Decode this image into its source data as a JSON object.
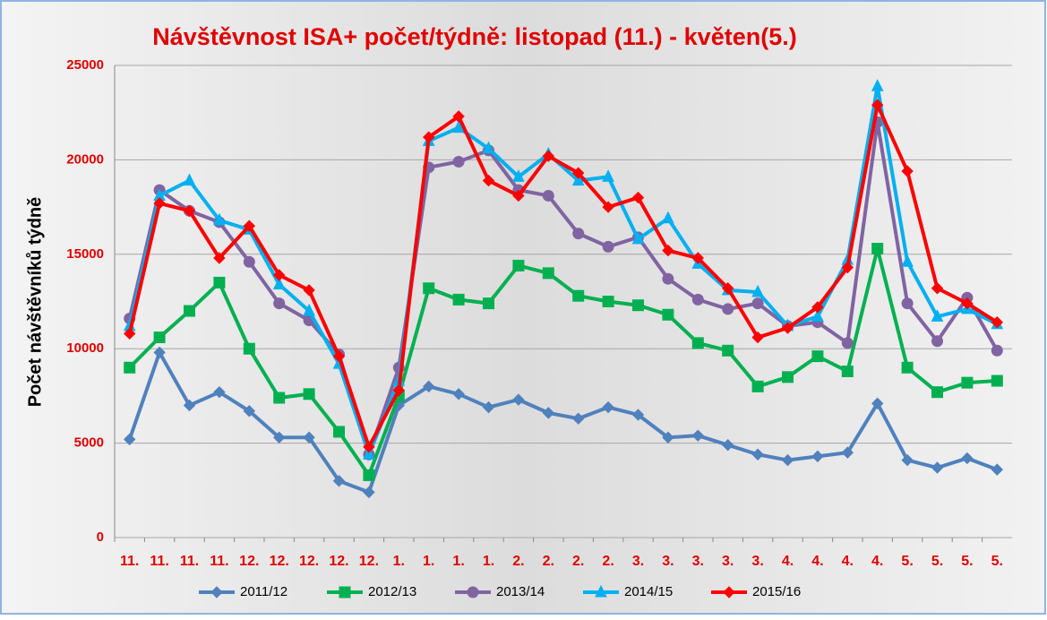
{
  "chart_data": {
    "type": "line",
    "title": "Návštěvnost ISA+  počet/týdně:  listopad (11.) - květen(5.)",
    "y_label": "Počet návštěvníků týdně",
    "categories": [
      "11.",
      "11.",
      "11.",
      "11.",
      "12.",
      "12.",
      "12.",
      "12.",
      "12.",
      "1.",
      "1.",
      "1.",
      "1.",
      "2.",
      "2.",
      "2.",
      "2.",
      "3.",
      "3.",
      "3.",
      "3.",
      "3.",
      "4.",
      "4.",
      "4.",
      "4.",
      "5.",
      "5.",
      "5.",
      "5."
    ],
    "ylim": [
      0,
      25000
    ],
    "yticks": [
      0,
      5000,
      10000,
      15000,
      20000,
      25000
    ],
    "grid": true,
    "legend": "bottom",
    "series": [
      {
        "name": "2011/12",
        "color": "#4f81bd",
        "marker": "diamond",
        "values": [
          5200,
          9800,
          7000,
          7700,
          6700,
          5300,
          5300,
          3000,
          2400,
          7000,
          8000,
          7600,
          6900,
          7300,
          6600,
          6300,
          6900,
          6500,
          5300,
          5400,
          4900,
          4400,
          4100,
          4300,
          4500,
          7100,
          4100,
          3700,
          4200,
          3600
        ]
      },
      {
        "name": "2012/13",
        "color": "#00b050",
        "marker": "square",
        "values": [
          9000,
          10600,
          12000,
          13500,
          10000,
          7400,
          7600,
          5600,
          3300,
          7500,
          13200,
          12600,
          12400,
          14400,
          14000,
          12800,
          12500,
          12300,
          11800,
          10300,
          9900,
          8000,
          8500,
          9600,
          8800,
          15300,
          9000,
          7700,
          8200,
          8300
        ]
      },
      {
        "name": "2013/14",
        "color": "#8064a2",
        "marker": "circle",
        "values": [
          11600,
          18400,
          17300,
          16700,
          14600,
          12400,
          11500,
          9700,
          4400,
          9000,
          19600,
          19900,
          20500,
          18400,
          18100,
          16100,
          15400,
          15900,
          13700,
          12600,
          12100,
          12400,
          11200,
          11400,
          10300,
          22000,
          12400,
          10400,
          12700,
          9900
        ]
      },
      {
        "name": "2014/15",
        "color": "#00b0f0",
        "marker": "triangle",
        "values": [
          11200,
          18100,
          18900,
          16800,
          16300,
          13400,
          12000,
          9200,
          4400,
          8300,
          21000,
          21700,
          20600,
          19100,
          20300,
          18900,
          19100,
          15800,
          16900,
          14500,
          13100,
          13000,
          11200,
          11700,
          14700,
          23900,
          14600,
          11700,
          12100,
          11300
        ]
      },
      {
        "name": "2015/16",
        "color": "#ff0000",
        "marker": "diamond",
        "values": [
          10800,
          17700,
          17300,
          14800,
          16500,
          13900,
          13100,
          9600,
          4800,
          7800,
          21200,
          22300,
          18900,
          18100,
          20200,
          19300,
          17500,
          18000,
          15200,
          14800,
          13200,
          10600,
          11100,
          12200,
          14300,
          22900,
          19400,
          13200,
          12400,
          11400
        ]
      }
    ]
  }
}
